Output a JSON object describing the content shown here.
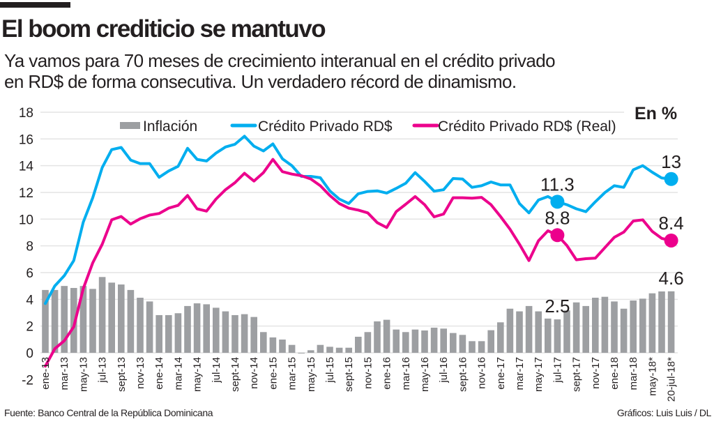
{
  "header": {
    "title": "El boom crediticio se mantuvo",
    "subtitle_line1": "Ya vamos para 70 meses de crecimiento interanual en el crédito privado",
    "subtitle_line2": "en RD$ de forma consecutiva. Un verdadero récord de dinamismo."
  },
  "footer": {
    "source": "Fuente: Banco Central de la República Dominicana",
    "credit": "Gráficos: Luis Luis / DL"
  },
  "chart_data": {
    "type": "bar+line",
    "unit_label": "En %",
    "ylim": [
      -2,
      18
    ],
    "yticks": [
      18,
      16,
      14,
      12,
      10,
      8,
      6,
      4,
      2,
      0,
      -2
    ],
    "grid": true,
    "legend_placement": "top",
    "x_tick_labels": [
      "ene-13",
      "mar-13",
      "may-13",
      "jul-13",
      "sept-13",
      "nov-13",
      "ene-14",
      "mar-14",
      "may-14",
      "jul-14",
      "sept-14",
      "nov-14",
      "ene-15",
      "mar-15",
      "may-15",
      "jul-15",
      "sept-15",
      "nov-15",
      "ene-16",
      "mar-16",
      "may-16",
      "jul-16",
      "sept-16",
      "nov-16",
      "ene-17",
      "mar-17",
      "may-17",
      "jul-17",
      "sept-17",
      "nov-17",
      "ene-18",
      "mar-18",
      "may-18*",
      "20-jul-18*"
    ],
    "x_start": "ene-13",
    "x_end": "20-jul-18*",
    "series": [
      {
        "name": "Inflación",
        "type": "bar",
        "color": "#9d9fa2",
        "values": [
          4.7,
          4.7,
          5.0,
          4.85,
          5.0,
          4.78,
          5.67,
          5.25,
          5.11,
          4.7,
          4.12,
          3.84,
          2.82,
          2.82,
          2.96,
          3.5,
          3.7,
          3.63,
          3.37,
          3.1,
          2.82,
          2.89,
          2.68,
          1.55,
          1.15,
          0.99,
          0.59,
          -0.05,
          0.19,
          0.59,
          0.45,
          0.38,
          0.38,
          1.2,
          1.55,
          2.35,
          2.47,
          1.74,
          1.55,
          1.74,
          1.67,
          1.88,
          1.81,
          1.48,
          1.34,
          0.87,
          0.87,
          1.69,
          2.28,
          3.3,
          3.1,
          3.5,
          3.1,
          2.56,
          2.5,
          3.17,
          3.77,
          3.5,
          4.12,
          4.19,
          3.84,
          3.3,
          3.91,
          4.05,
          4.45,
          4.59,
          4.6
        ]
      },
      {
        "name": "Crédito Privado RD$",
        "type": "line",
        "color": "#00aeef",
        "values": [
          3.69,
          5.0,
          5.77,
          6.9,
          9.77,
          11.6,
          13.86,
          15.2,
          15.36,
          14.42,
          14.16,
          14.16,
          13.13,
          13.6,
          13.95,
          15.3,
          14.47,
          14.35,
          14.94,
          15.4,
          15.6,
          16.2,
          15.46,
          15.1,
          15.63,
          14.52,
          14.0,
          13.2,
          13.2,
          13.1,
          12.12,
          11.5,
          11.17,
          11.9,
          12.07,
          12.12,
          11.95,
          12.3,
          12.68,
          13.48,
          12.82,
          12.09,
          12.2,
          13.04,
          13.0,
          12.38,
          12.5,
          12.78,
          12.56,
          12.56,
          11.17,
          10.47,
          11.43,
          11.69,
          11.3,
          11.08,
          10.77,
          10.56,
          11.3,
          11.98,
          12.5,
          12.38,
          13.69,
          14.0,
          13.51,
          13.08,
          13.0
        ]
      },
      {
        "name": "Crédito Privado RD$ (Real)",
        "type": "line",
        "color": "#ec008c",
        "values": [
          -1.0,
          0.3,
          0.9,
          1.95,
          4.8,
          6.73,
          8.12,
          9.95,
          10.2,
          9.63,
          10.03,
          10.3,
          10.42,
          10.82,
          11.03,
          11.77,
          10.77,
          10.6,
          11.5,
          12.2,
          12.73,
          13.43,
          12.85,
          13.48,
          14.47,
          13.55,
          13.37,
          13.25,
          13.0,
          12.5,
          11.77,
          11.17,
          10.82,
          10.68,
          10.47,
          9.74,
          9.37,
          10.56,
          11.11,
          11.69,
          11.08,
          10.17,
          10.38,
          11.6,
          11.6,
          11.57,
          11.63,
          11.08,
          10.2,
          9.25,
          8.12,
          6.9,
          8.38,
          9.13,
          8.8,
          8.03,
          6.96,
          7.04,
          7.08,
          7.86,
          8.64,
          9.03,
          9.86,
          9.95,
          9.08,
          8.56,
          8.4
        ]
      }
    ],
    "annotations": [
      {
        "series": "Crédito Privado RD$",
        "at": "jul-17",
        "label": "11.3"
      },
      {
        "series": "Crédito Privado RD$ (Real)",
        "at": "jul-17",
        "label": "8.8"
      },
      {
        "series": "Inflación",
        "at": "jul-17",
        "label": "2.5"
      },
      {
        "series": "Crédito Privado RD$",
        "at": "20-jul-18*",
        "label": "13"
      },
      {
        "series": "Crédito Privado RD$ (Real)",
        "at": "20-jul-18*",
        "label": "8.4"
      },
      {
        "series": "Inflación",
        "at": "20-jul-18*",
        "label": "4.6"
      }
    ]
  }
}
